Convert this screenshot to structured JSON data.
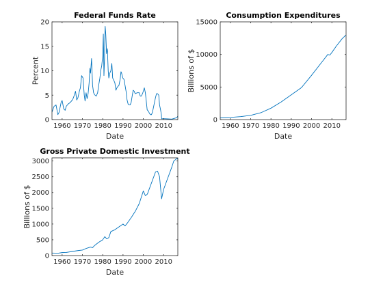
{
  "chart_data": [
    {
      "type": "line",
      "title": "Federal Funds Rate",
      "xlabel": "Date",
      "ylabel": "Percent",
      "xlim": [
        1955,
        2017
      ],
      "ylim": [
        0,
        20
      ],
      "xticks": [
        1960,
        1970,
        1980,
        1990,
        2000,
        2010
      ],
      "yticks": [
        0,
        5,
        10,
        15,
        20
      ],
      "color": "#0072bd",
      "series": [
        {
          "x": [
            1955,
            1956,
            1957,
            1957.9,
            1958.5,
            1959.5,
            1960,
            1960.8,
            1961.5,
            1962,
            1963,
            1964,
            1965,
            1965.5,
            1966,
            1966.6,
            1967.2,
            1967.8,
            1968.5,
            1969,
            1969.6,
            1970.3,
            1970.9,
            1971.3,
            1971.8,
            1972.3,
            1972.8,
            1973.3,
            1973.7,
            1974,
            1974.5,
            1975,
            1975.5,
            1976,
            1976.8,
            1977.5,
            1978,
            1978.6,
            1979,
            1979.5,
            1980,
            1980.3,
            1980.6,
            1980.9,
            1981,
            1981.2,
            1981.5,
            1981.9,
            1982.3,
            1982.7,
            1983,
            1983.5,
            1984,
            1984.5,
            1984.9,
            1985.5,
            1986,
            1986.5,
            1987,
            1987.5,
            1988,
            1988.6,
            1989,
            1989.3,
            1989.9,
            1990.5,
            1991,
            1991.5,
            1992,
            1992.5,
            1993,
            1993.5,
            1994,
            1994.5,
            1995,
            1995.5,
            1996,
            1997,
            1998,
            1998.5,
            1999,
            1999.6,
            2000,
            2000.5,
            2001,
            2001.4,
            2001.9,
            2002.5,
            2003,
            2003.5,
            2004,
            2004.5,
            2005,
            2005.5,
            2006,
            2006.5,
            2007,
            2007.6,
            2008,
            2008.5,
            2008.9,
            2009,
            2010,
            2012,
            2014,
            2015.8,
            2016.5,
            2017
          ],
          "y": [
            1.5,
            2.7,
            3.0,
            1.0,
            1.5,
            3.5,
            3.9,
            2.2,
            1.9,
            2.7,
            3.2,
            3.5,
            4.0,
            4.4,
            5.0,
            5.8,
            4.0,
            4.5,
            5.8,
            6.5,
            9.0,
            8.5,
            5.0,
            3.8,
            5.5,
            4.3,
            5.3,
            7.5,
            10.5,
            9.5,
            12.5,
            7.0,
            5.5,
            5.1,
            4.8,
            5.5,
            7.0,
            8.5,
            10.0,
            11.0,
            13.0,
            17.5,
            9.0,
            12.5,
            16.0,
            19.1,
            17.5,
            13.5,
            14.5,
            10.0,
            8.5,
            9.5,
            10.0,
            11.5,
            8.5,
            8.0,
            7.5,
            6.0,
            6.5,
            6.8,
            7.0,
            8.3,
            9.8,
            9.5,
            8.5,
            8.2,
            7.0,
            5.8,
            4.0,
            3.2,
            3.0,
            3.0,
            3.5,
            4.8,
            6.0,
            5.8,
            5.3,
            5.5,
            5.5,
            4.8,
            4.8,
            5.3,
            5.8,
            6.5,
            5.5,
            4.0,
            2.0,
            1.7,
            1.3,
            1.0,
            1.0,
            1.5,
            2.5,
            3.5,
            4.5,
            5.3,
            5.3,
            5.0,
            3.0,
            2.0,
            1.0,
            0.16,
            0.18,
            0.14,
            0.1,
            0.3,
            0.4,
            0.7
          ]
        }
      ]
    },
    {
      "type": "line",
      "title": "Consumption Expenditures",
      "xlabel": "Date",
      "ylabel": "Billions of $",
      "xlim": [
        1955,
        2017
      ],
      "ylim": [
        0,
        15000
      ],
      "xticks": [
        1960,
        1970,
        1980,
        1990,
        2000,
        2010
      ],
      "yticks": [
        0,
        5000,
        10000,
        15000
      ],
      "color": "#0072bd",
      "series": [
        {
          "x": [
            1955,
            1960,
            1965,
            1970,
            1975,
            1980,
            1985,
            1990,
            1995,
            2000,
            2005,
            2008,
            2009,
            2010,
            2012,
            2015,
            2017
          ],
          "y": [
            250,
            330,
            450,
            650,
            1050,
            1750,
            2700,
            3800,
            4900,
            6800,
            8800,
            10000,
            9900,
            10300,
            11200,
            12400,
            13000
          ]
        }
      ]
    },
    {
      "type": "line",
      "title": "Gross Private Domestic Investment",
      "xlabel": "Date",
      "ylabel": "Billions of $",
      "xlim": [
        1955,
        2017
      ],
      "ylim": [
        0,
        3100
      ],
      "xticks": [
        1960,
        1970,
        1980,
        1990,
        2000,
        2010
      ],
      "yticks": [
        0,
        500,
        1000,
        1500,
        2000,
        2500,
        3000
      ],
      "color": "#0072bd",
      "series": [
        {
          "x": [
            1955,
            1958,
            1960,
            1962,
            1965,
            1968,
            1970,
            1972,
            1974,
            1975,
            1976,
            1978,
            1980,
            1981,
            1982,
            1983,
            1984,
            1986,
            1988,
            1990,
            1991,
            1992,
            1994,
            1996,
            1998,
            2000,
            2001,
            2002,
            2004,
            2006,
            2007,
            2008,
            2009,
            2010,
            2012,
            2014,
            2015,
            2016,
            2016.5,
            2017
          ],
          "y": [
            80,
            75,
            95,
            100,
            130,
            160,
            175,
            230,
            270,
            250,
            320,
            420,
            500,
            600,
            530,
            570,
            760,
            820,
            910,
            1000,
            940,
            1020,
            1200,
            1400,
            1650,
            2050,
            1900,
            1950,
            2300,
            2650,
            2680,
            2500,
            1800,
            2100,
            2450,
            2800,
            3000,
            3050,
            3100,
            3050
          ]
        }
      ]
    }
  ]
}
